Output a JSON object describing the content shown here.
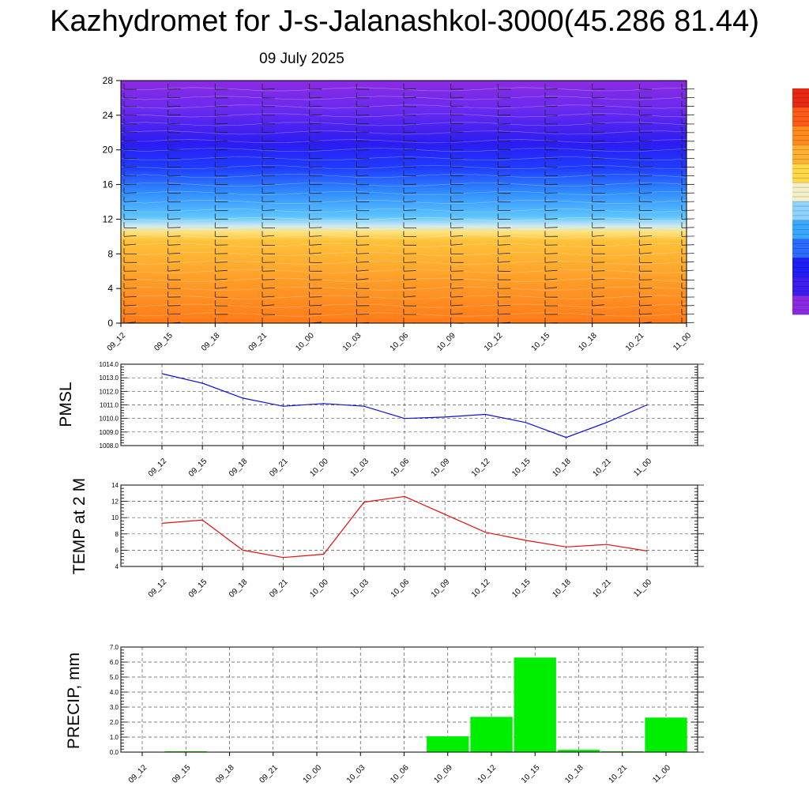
{
  "title": "Kazhydromet for J-s-Jalanashkol-3000(45.286 81.44)",
  "subtitle": "09 July 2025",
  "colors": {
    "pmsl_line": "#1010d0",
    "temp_line": "#e01010",
    "precip_bar": "#00ee00",
    "grid": "#555555"
  },
  "chart_data": [
    {
      "id": "cross-section",
      "type": "heatmap",
      "categories": [
        "09_12",
        "09_15",
        "09_18",
        "09_21",
        "10_00",
        "10_03",
        "10_06",
        "10_09",
        "10_12",
        "10_15",
        "10_18",
        "10_21",
        "11_00"
      ],
      "ylim": [
        0,
        28
      ],
      "yticks": [
        0,
        4,
        8,
        12,
        16,
        20,
        24,
        28
      ],
      "colorbar_stops": [
        "#8a2be2",
        "#3d1df0",
        "#1f1ff5",
        "#2b6bff",
        "#39a8ff",
        "#8fd3ff",
        "#f3f0c8",
        "#ffd84a",
        "#ffb030",
        "#ff8a20",
        "#ff5a1a",
        "#e82a14"
      ]
    },
    {
      "id": "pmsl",
      "type": "line",
      "ylabel": "PMSL",
      "categories": [
        "09_12",
        "09_15",
        "09_18",
        "09_21",
        "10_00",
        "10_03",
        "10_06",
        "10_09",
        "10_12",
        "10_15",
        "10_18",
        "10_21",
        "11_00"
      ],
      "values": [
        1013.3,
        1012.6,
        1011.5,
        1010.9,
        1011.1,
        1010.9,
        1010.0,
        1010.1,
        1010.3,
        1009.7,
        1008.6,
        1009.7,
        1011.0
      ],
      "ylim": [
        1008.0,
        1014.0
      ],
      "yticks": [
        "1008.0",
        "1009.0",
        "1010.0",
        "1011.0",
        "1012.0",
        "1013.0",
        "1014.0"
      ],
      "grid": true
    },
    {
      "id": "temp",
      "type": "line",
      "ylabel": "TEMP at 2 M",
      "categories": [
        "09_12",
        "09_15",
        "09_18",
        "09_21",
        "10_00",
        "10_03",
        "10_06",
        "10_09",
        "10_12",
        "10_15",
        "10_18",
        "10_21",
        "11_00"
      ],
      "values": [
        9.3,
        9.7,
        6.0,
        5.1,
        5.5,
        11.9,
        12.6,
        10.4,
        8.2,
        7.2,
        6.4,
        6.7,
        5.9
      ],
      "ylim": [
        4,
        14
      ],
      "yticks": [
        "4",
        "6",
        "8",
        "10",
        "12",
        "14"
      ],
      "grid": true
    },
    {
      "id": "precip",
      "type": "bar",
      "ylabel": "PRECIP, mm",
      "categories": [
        "09_12",
        "09_15",
        "09_18",
        "09_21",
        "10_00",
        "10_03",
        "10_06",
        "10_09",
        "10_12",
        "10_15",
        "10_18",
        "10_21",
        "11_00"
      ],
      "values": [
        0.0,
        0.05,
        0.0,
        0.0,
        0.0,
        0.0,
        0.0,
        1.05,
        2.35,
        6.3,
        0.15,
        0.05,
        2.3
      ],
      "ylim": [
        0,
        7
      ],
      "yticks": [
        "0.0",
        "1.0",
        "2.0",
        "3.0",
        "4.0",
        "5.0",
        "6.0",
        "7.0"
      ],
      "grid": true
    }
  ]
}
